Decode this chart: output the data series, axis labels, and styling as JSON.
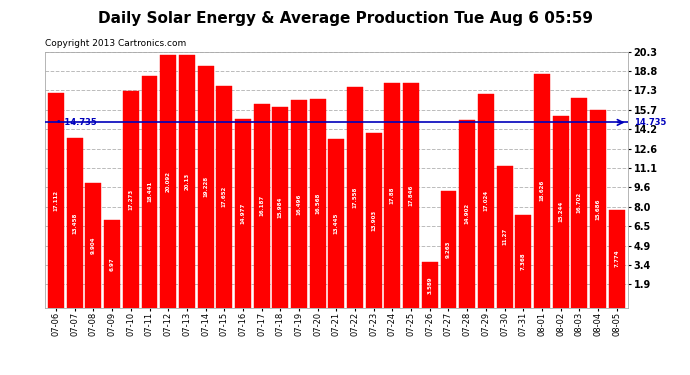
{
  "title": "Daily Solar Energy & Average Production Tue Aug 6 05:59",
  "copyright": "Copyright 2013 Cartronics.com",
  "categories": [
    "07-06",
    "07-07",
    "07-08",
    "07-09",
    "07-10",
    "07-11",
    "07-12",
    "07-13",
    "07-14",
    "07-15",
    "07-16",
    "07-17",
    "07-18",
    "07-19",
    "07-20",
    "07-21",
    "07-22",
    "07-23",
    "07-24",
    "07-25",
    "07-26",
    "07-27",
    "07-28",
    "07-29",
    "07-30",
    "07-31",
    "08-01",
    "08-02",
    "08-03",
    "08-04",
    "08-05"
  ],
  "values": [
    17.112,
    13.458,
    9.904,
    6.97,
    17.273,
    18.441,
    20.092,
    20.13,
    19.228,
    17.652,
    14.977,
    16.187,
    15.984,
    16.496,
    16.568,
    13.445,
    17.558,
    13.903,
    17.88,
    17.846,
    3.589,
    9.263,
    14.902,
    17.024,
    11.27,
    7.368,
    18.626,
    15.244,
    16.702,
    15.686,
    7.774
  ],
  "average": 14.735,
  "bar_color": "#ff0000",
  "average_color": "#0000bb",
  "ylim_min": 0,
  "ylim_max": 20.3,
  "yticks": [
    1.9,
    3.4,
    4.9,
    6.5,
    8.0,
    9.6,
    11.1,
    12.6,
    14.2,
    15.7,
    17.3,
    18.8,
    20.3
  ],
  "background_color": "#ffffff",
  "grid_color": "#bbbbbb",
  "legend_avg_bg": "#0000aa",
  "legend_daily_bg": "#cc0000",
  "title_fontsize": 11,
  "copyright_fontsize": 6.5,
  "bar_label_fontsize": 4.5,
  "xtick_fontsize": 6,
  "ytick_fontsize": 7,
  "avg_label": "14.735"
}
